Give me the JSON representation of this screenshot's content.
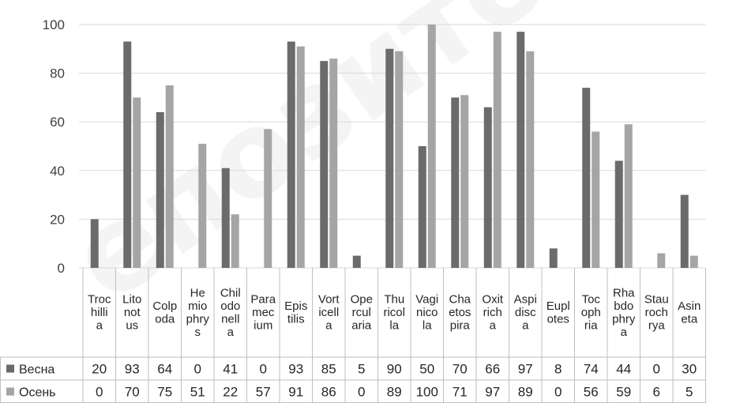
{
  "chart_data": {
    "type": "bar",
    "categories": [
      [
        "Troc",
        "hilli",
        "a"
      ],
      [
        "Lito",
        "not",
        "us"
      ],
      [
        "Colp",
        "oda"
      ],
      [
        "He",
        "mio",
        "phry",
        "s"
      ],
      [
        "Chil",
        "odo",
        "nell",
        "a"
      ],
      [
        "Para",
        "mec",
        "ium"
      ],
      [
        "Epis",
        "tilis"
      ],
      [
        "Vort",
        "icell",
        "a"
      ],
      [
        "Ope",
        "rcul",
        "aria"
      ],
      [
        "Thu",
        "ricol",
        "la"
      ],
      [
        "Vagi",
        "nico",
        "la"
      ],
      [
        "Cha",
        "etos",
        "pira"
      ],
      [
        "Oxit",
        "rich",
        "a"
      ],
      [
        "Aspi",
        "disc",
        "a"
      ],
      [
        "Eupl",
        "otes"
      ],
      [
        "Toc",
        "oph",
        "ria"
      ],
      [
        "Rha",
        "bdo",
        "phry",
        "a"
      ],
      [
        "Stau",
        "roch",
        "rya"
      ],
      [
        "Asin",
        "eta"
      ]
    ],
    "series": [
      {
        "name": "Весна",
        "color": "#6b6b6b",
        "values": [
          20,
          93,
          64,
          0,
          41,
          0,
          93,
          85,
          5,
          90,
          50,
          70,
          66,
          97,
          8,
          74,
          44,
          0,
          30
        ]
      },
      {
        "name": "Осень",
        "color": "#a5a5a5",
        "values": [
          0,
          70,
          75,
          51,
          22,
          57,
          91,
          86,
          0,
          89,
          100,
          71,
          97,
          89,
          0,
          56,
          59,
          6,
          5
        ]
      }
    ],
    "ylim": [
      0,
      100
    ],
    "yticks": [
      0,
      20,
      40,
      60,
      80,
      100
    ],
    "grid": true,
    "legend": "data-table"
  }
}
